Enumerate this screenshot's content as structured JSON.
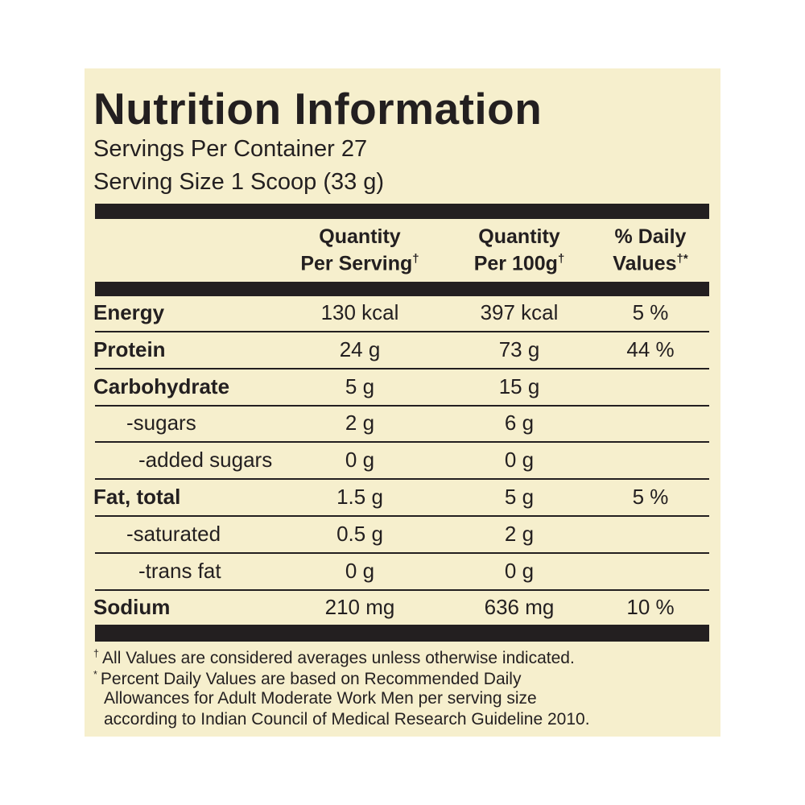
{
  "header": {
    "title": "Nutrition Information",
    "servings": "Servings Per Container 27",
    "serving_size": "Serving Size 1 Scoop (33 g)"
  },
  "table": {
    "columns": [
      {
        "lines": [
          "Quantity",
          "Per Serving"
        ],
        "mark": "†"
      },
      {
        "lines": [
          "Quantity",
          "Per 100g"
        ],
        "mark": "†"
      },
      {
        "lines": [
          "% Daily",
          "Values"
        ],
        "mark": "†*"
      }
    ],
    "rows": [
      {
        "label": "Energy",
        "cells": [
          "130 kcal",
          "397 kcal",
          "5 %"
        ]
      },
      {
        "label": "Protein",
        "cells": [
          "24 g",
          "73 g",
          "44 %"
        ]
      },
      {
        "label": "Carbohydrate",
        "cells": [
          "5 g",
          "15 g"
        ],
        "sub": [
          {
            "label": "-sugars",
            "cells": [
              "2 g",
              "6 g"
            ],
            "sub": [
              {
                "label": "-added sugars",
                "cells": [
                  "0 g",
                  "0 g"
                ]
              }
            ]
          }
        ]
      },
      {
        "label": "Fat, total",
        "cells": [
          "1.5 g",
          "5 g",
          "5 %"
        ],
        "sub": [
          {
            "label": "-saturated",
            "cells": [
              "0.5 g",
              "2 g"
            ],
            "sub": [
              {
                "label": "-trans fat",
                "cells": [
                  "0 g",
                  "0 g"
                ]
              }
            ]
          }
        ]
      },
      {
        "label": "Sodium",
        "cells": [
          "210 mg",
          "636 mg",
          "10 %"
        ]
      }
    ]
  },
  "footnotes": [
    {
      "mark": "†",
      "lines": [
        "All Values are considered averages unless otherwise indicated."
      ]
    },
    {
      "mark": "*",
      "lines": [
        "Percent Daily Values are based on Recommended Daily",
        "Allowances for Adult Moderate Work Men per serving size",
        "according to Indian Council of Medical Research Guideline 2010."
      ]
    }
  ]
}
